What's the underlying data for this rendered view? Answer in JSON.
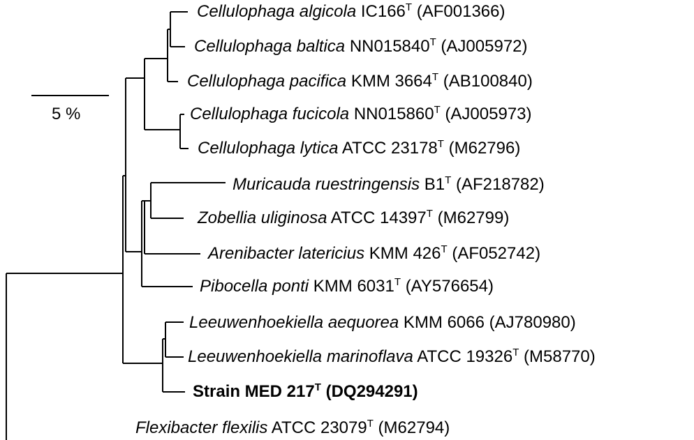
{
  "scale_bar": {
    "label": "5 %"
  },
  "taxa": [
    {
      "id": "c-algicola",
      "genus_species": "Cellulophaga algicola",
      "strain": "IC166",
      "type_marker": "T",
      "accession": "(AF001366)"
    },
    {
      "id": "c-baltica",
      "genus_species": "Cellulophaga baltica",
      "strain": "NN015840",
      "type_marker": "T",
      "accession": "(AJ005972)"
    },
    {
      "id": "c-pacifica",
      "genus_species": "Cellulophaga pacifica",
      "strain": "KMM 3664",
      "type_marker": "T",
      "accession": "(AB100840)"
    },
    {
      "id": "c-fucicola",
      "genus_species": "Cellulophaga fucicola",
      "strain": "NN015860",
      "type_marker": "T",
      "accession": "(AJ005973)"
    },
    {
      "id": "c-lytica",
      "genus_species": "Cellulophaga lytica",
      "strain": "ATCC 23178",
      "type_marker": "T",
      "accession": "(M62796)"
    },
    {
      "id": "m-ruestr",
      "genus_species": "Muricauda ruestringensis",
      "strain": "B1",
      "type_marker": "T",
      "accession": "(AF218782)"
    },
    {
      "id": "z-uliginosa",
      "genus_species": "Zobellia uliginosa",
      "strain": "ATCC 14397",
      "type_marker": "T",
      "accession": "(M62799)"
    },
    {
      "id": "a-latericius",
      "genus_species": "Arenibacter latericius",
      "strain": "KMM 426",
      "type_marker": "T",
      "accession": "(AF052742)"
    },
    {
      "id": "p-ponti",
      "genus_species": "Pibocella ponti",
      "strain": "KMM 6031",
      "type_marker": "T",
      "accession": "(AY576654)"
    },
    {
      "id": "l-aequorea",
      "genus_species": "Leeuwenhoekiella aequorea",
      "strain": "KMM 6066",
      "type_marker": "",
      "accession": "(AJ780980)"
    },
    {
      "id": "l-marinoflava",
      "genus_species": "Leeuwenhoekiella marinoflava",
      "strain": "ATCC 19326",
      "type_marker": "T",
      "accession": "(M58770)"
    },
    {
      "id": "strain-med217",
      "genus_species": "",
      "strain": "Strain MED 217",
      "type_marker": "T",
      "accession": "(DQ294291)"
    },
    {
      "id": "f-flexilis",
      "genus_species": "Flexibacter flexilis",
      "strain": "ATCC 23079",
      "type_marker": "T",
      "accession": "(M62794)"
    }
  ]
}
